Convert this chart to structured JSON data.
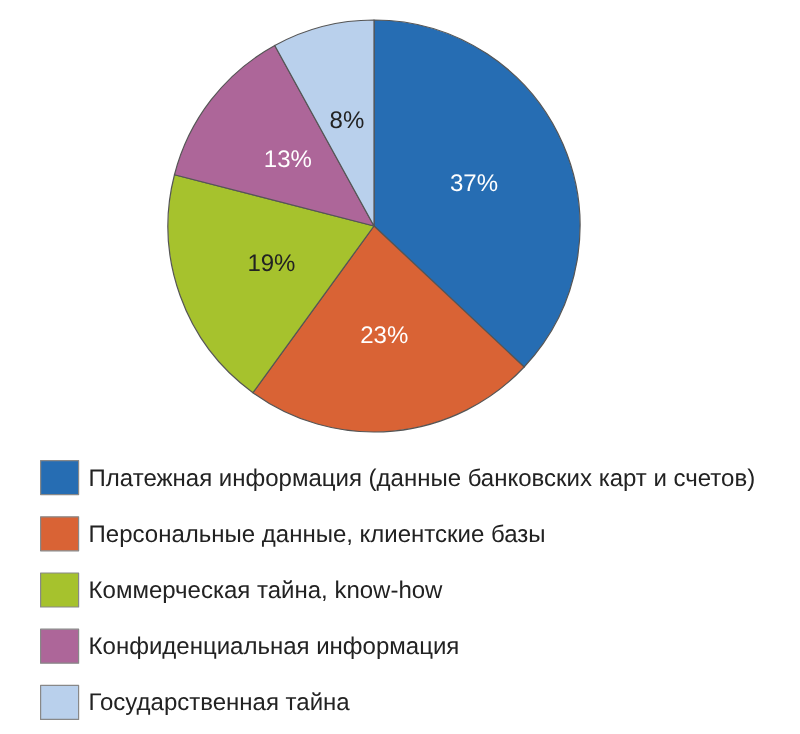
{
  "chart_data": {
    "type": "pie",
    "categories": [
      "Платежная информация (данные банковских карт и счетов)",
      "Персональные данные, клиентские базы",
      "Коммерческая тайна, know-how",
      "Конфиденциальная информация",
      "Государственная тайна"
    ],
    "values": [
      37,
      23,
      19,
      13,
      8
    ],
    "value_labels": [
      "37%",
      "23%",
      "19%",
      "13%",
      "8%"
    ],
    "colors": [
      "#266db3",
      "#d96335",
      "#a6c22d",
      "#ad6699",
      "#b9d0ec"
    ],
    "legend": "bottom"
  }
}
